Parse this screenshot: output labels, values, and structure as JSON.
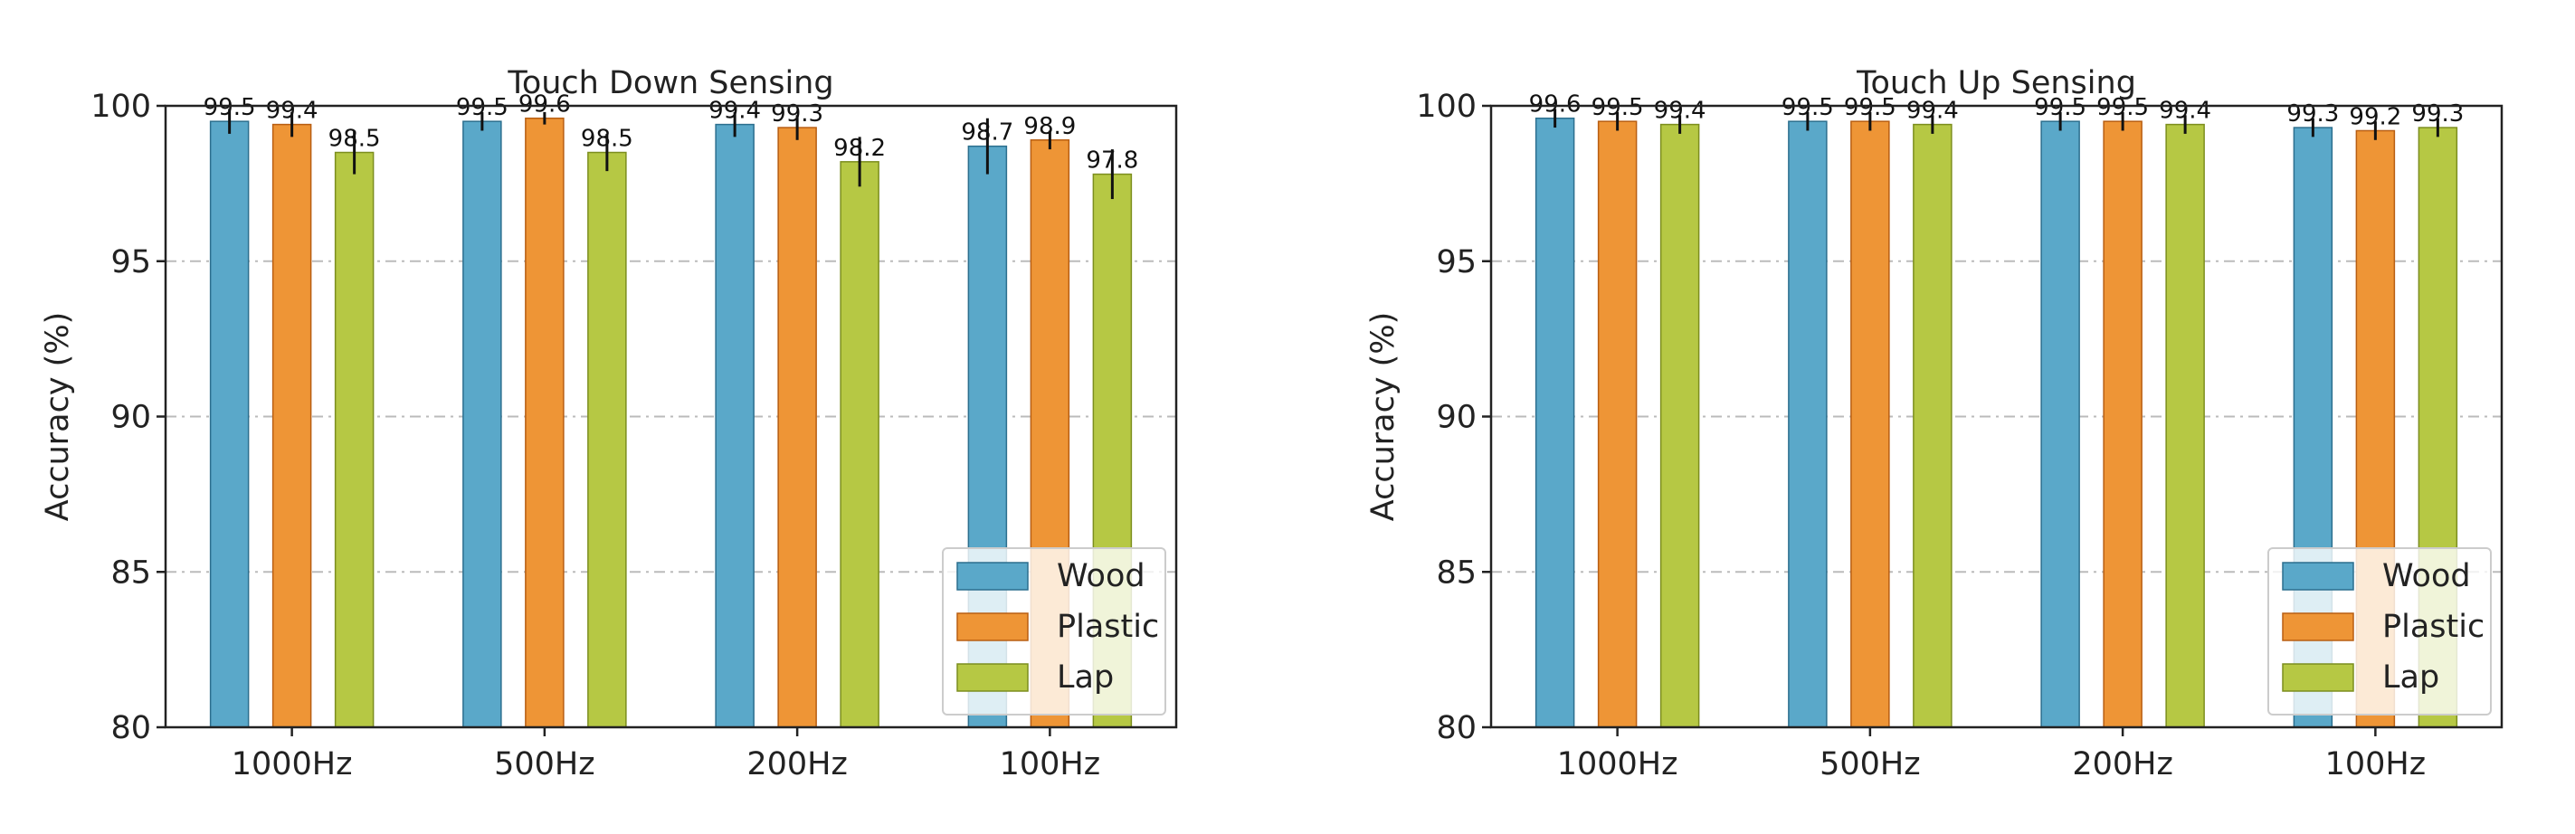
{
  "colors": {
    "Wood": "#5AA8C9",
    "Plastic": "#EE9536",
    "Lap": "#B6C844",
    "Wood_edge": "#2C6F8E",
    "Plastic_edge": "#B85E12",
    "Lap_edge": "#7C8E1E",
    "grid": "#BBBBBB",
    "axis": "#222222"
  },
  "chart_data": [
    {
      "type": "bar",
      "title": "Touch Down Sensing",
      "xlabel": "",
      "ylabel": "Accuracy (%)",
      "categories": [
        "1000Hz",
        "500Hz",
        "200Hz",
        "100Hz"
      ],
      "ylim": [
        80,
        100
      ],
      "yticks": [
        80,
        85,
        90,
        95,
        100
      ],
      "grid": "horizontal dash-dot",
      "legend": "lower-right",
      "series": [
        {
          "name": "Wood",
          "values": [
            99.5,
            99.5,
            99.4,
            98.7
          ],
          "labels": [
            "99.5",
            "99.5",
            "99.4",
            "98.7"
          ],
          "errors": [
            0.4,
            0.3,
            0.4,
            0.9
          ]
        },
        {
          "name": "Plastic",
          "values": [
            99.4,
            99.6,
            99.3,
            98.9
          ],
          "labels": [
            "99.4",
            "99.6",
            "99.3",
            "98.9"
          ],
          "errors": [
            0.4,
            0.2,
            0.4,
            0.3
          ]
        },
        {
          "name": "Lap",
          "values": [
            98.5,
            98.5,
            98.2,
            97.8
          ],
          "labels": [
            "98.5",
            "98.5",
            "98.2",
            "97.8"
          ],
          "errors": [
            0.7,
            0.6,
            0.8,
            0.8
          ]
        }
      ]
    },
    {
      "type": "bar",
      "title": "Touch Up Sensing",
      "xlabel": "",
      "ylabel": "Accuracy (%)",
      "categories": [
        "1000Hz",
        "500Hz",
        "200Hz",
        "100Hz"
      ],
      "ylim": [
        80,
        100
      ],
      "yticks": [
        80,
        85,
        90,
        95,
        100
      ],
      "grid": "horizontal dash-dot",
      "legend": "lower-right",
      "series": [
        {
          "name": "Wood",
          "values": [
            99.6,
            99.5,
            99.5,
            99.3
          ],
          "labels": [
            "99.6",
            "99.5",
            "99.5",
            "99.3"
          ],
          "errors": [
            0.3,
            0.3,
            0.3,
            0.3
          ]
        },
        {
          "name": "Plastic",
          "values": [
            99.5,
            99.5,
            99.5,
            99.2
          ],
          "labels": [
            "99.5",
            "99.5",
            "99.5",
            "99.2"
          ],
          "errors": [
            0.3,
            0.3,
            0.3,
            0.3
          ]
        },
        {
          "name": "Lap",
          "values": [
            99.4,
            99.4,
            99.4,
            99.3
          ],
          "labels": [
            "99.4",
            "99.4",
            "99.4",
            "99.3"
          ],
          "errors": [
            0.3,
            0.3,
            0.3,
            0.3
          ]
        }
      ]
    }
  ]
}
